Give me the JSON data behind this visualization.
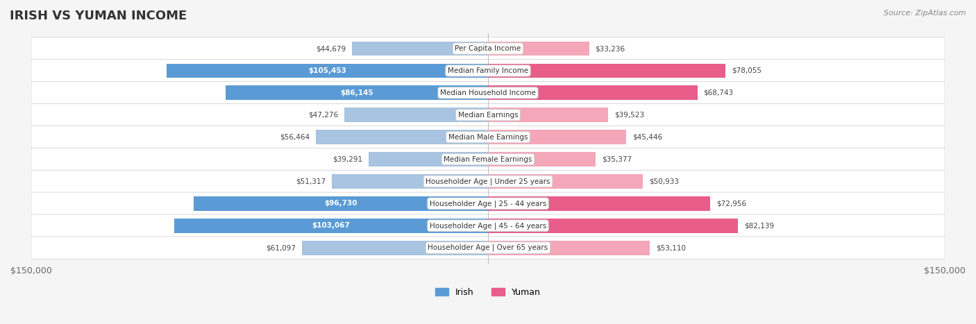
{
  "title": "IRISH VS YUMAN INCOME",
  "source": "Source: ZipAtlas.com",
  "categories": [
    "Per Capita Income",
    "Median Family Income",
    "Median Household Income",
    "Median Earnings",
    "Median Male Earnings",
    "Median Female Earnings",
    "Householder Age | Under 25 years",
    "Householder Age | 25 - 44 years",
    "Householder Age | 45 - 64 years",
    "Householder Age | Over 65 years"
  ],
  "irish_values": [
    44679,
    105453,
    86145,
    47276,
    56464,
    39291,
    51317,
    96730,
    103067,
    61097
  ],
  "yuman_values": [
    33236,
    78055,
    68743,
    39523,
    45446,
    35377,
    50933,
    72956,
    82139,
    53110
  ],
  "irish_labels": [
    "$44,679",
    "$105,453",
    "$86,145",
    "$47,276",
    "$56,464",
    "$39,291",
    "$51,317",
    "$96,730",
    "$103,067",
    "$61,097"
  ],
  "yuman_labels": [
    "$33,236",
    "$78,055",
    "$68,743",
    "$39,523",
    "$45,446",
    "$35,377",
    "$50,933",
    "$72,956",
    "$82,139",
    "$53,110"
  ],
  "irish_color_light": "#a8c4e0",
  "irish_color_dark": "#5b9bd5",
  "yuman_color_light": "#f4a7b9",
  "yuman_color_dark": "#e85d8a",
  "max_value": 150000,
  "background_color": "#f5f5f5",
  "row_bg_color": "#ffffff",
  "legend_irish_color": "#5b9bd5",
  "legend_yuman_color": "#e85d8a"
}
